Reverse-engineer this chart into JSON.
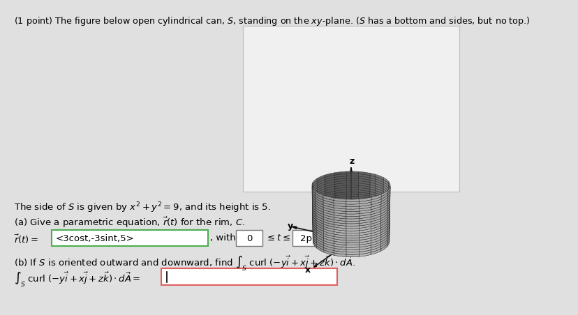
{
  "bg_color": "#e0e0e0",
  "white": "#ffffff",
  "img_box_color": "#f0f0f0",
  "red_border": "#e06060",
  "green_border": "#4caf50",
  "title_text": "(1 point) The figure below open cylindrical can, $S$, standing on the $xy$-plane. ($S$ has a bottom and sides, but no top.)",
  "side_text": "The side of $S$ is given by $x^2 + y^2 = 9$, and its height is 5.",
  "part_a_label": "(a) Give a parametric equation, $\\vec{r}(t)$ for the rim, $C$.",
  "part_a_answer": "<3cost,-3sint,5>",
  "part_a_t_lower": "0",
  "part_a_t_upper": "2pi",
  "font_size_title": 9.2,
  "font_size_body": 9.5,
  "cyl_face_color": "#c8c8c8",
  "cyl_edge_color": "#222222",
  "axis_line_color": "#111111"
}
